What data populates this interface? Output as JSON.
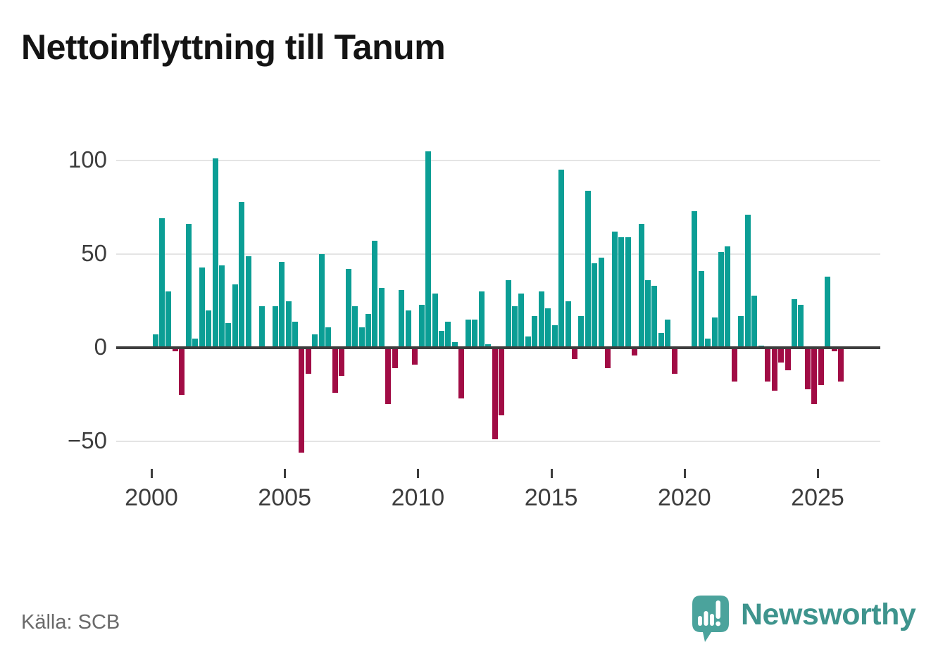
{
  "title": "Nettoinflyttning till Tanum",
  "source": {
    "label": "Källa: SCB"
  },
  "branding": {
    "name": "Newsworthy",
    "logo_icon": "speech-bubble-barchart-exclamation"
  },
  "chart_data": {
    "type": "bar",
    "title": "Nettoinflyttning till Tanum",
    "frequency": "quarterly",
    "start_quarter": "2000 Q1",
    "end_quarter": "2025 Q4",
    "values": [
      7,
      69,
      30,
      -2,
      -25,
      66,
      5,
      43,
      20,
      101,
      44,
      13,
      34,
      78,
      49,
      0,
      22,
      0,
      22,
      46,
      25,
      14,
      -56,
      -14,
      7,
      50,
      11,
      -24,
      -15,
      42,
      22,
      11,
      18,
      57,
      32,
      -30,
      -11,
      31,
      20,
      -9,
      23,
      105,
      29,
      9,
      14,
      3,
      -27,
      15,
      15,
      30,
      2,
      -49,
      -36,
      36,
      22,
      29,
      6,
      17,
      30,
      21,
      12,
      95,
      25,
      -6,
      17,
      84,
      45,
      48,
      -11,
      62,
      59,
      59,
      -4,
      66,
      36,
      33,
      8,
      15,
      -14,
      0,
      0,
      73,
      41,
      5,
      16,
      51,
      54,
      -18,
      17,
      71,
      28,
      1,
      -18,
      -23,
      -8,
      -12,
      26,
      23,
      -22,
      -30,
      -20,
      38,
      -2,
      -18
    ],
    "yticks": [
      100,
      50,
      0,
      -50
    ],
    "ytick_labels": [
      "100",
      "50",
      "0",
      "−50"
    ],
    "xtick_labels": [
      "2000",
      "2005",
      "2010",
      "2015",
      "2020",
      "2025"
    ],
    "ylim": [
      -60,
      110
    ],
    "grid": true,
    "positive_color": "#0b9e95",
    "negative_color": "#a10c45"
  }
}
